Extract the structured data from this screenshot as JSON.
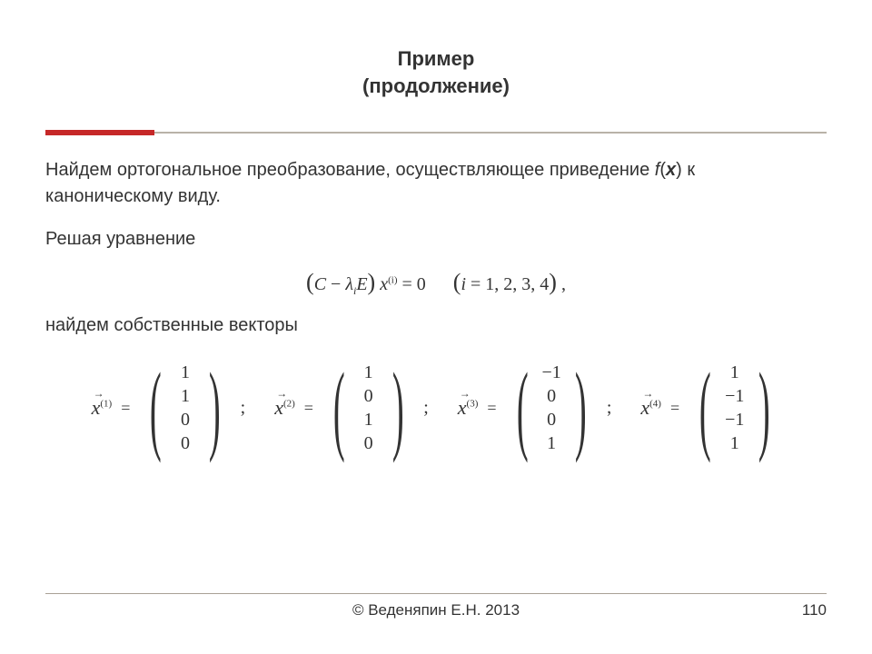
{
  "title": {
    "line1": "Пример",
    "line2": "(продолжение)"
  },
  "title_fontsize": "22px",
  "body_fontsize": "20px",
  "text": {
    "para1_a": "Найдем ортогональное преобразование, осуществляющее приведение ",
    "para1_b": "f",
    "para1_c": "(",
    "para1_d": "x",
    "para1_e": ") к каноническому виду.",
    "para2": "Решая уравнение",
    "para3": "найдем собственные векторы"
  },
  "equation": {
    "lp1": "(",
    "C": "C",
    "minus": " − ",
    "lambda": "λ",
    "i": "i",
    "E": "E",
    "rp1": ")",
    "sp": " ",
    "x": "x",
    "sup": "(i)",
    "eq": " = 0      ",
    "lp2": "(",
    "ivar": "i",
    "eqlist": " = 1, 2, 3, 4",
    "rp2": ")",
    "comma": " ,"
  },
  "vectors": [
    {
      "sup": "(1)",
      "col": [
        "1",
        "1",
        "0",
        "0"
      ],
      "semi": ";"
    },
    {
      "sup": "(2)",
      "col": [
        "1",
        "0",
        "1",
        "0"
      ],
      "semi": ";"
    },
    {
      "sup": "(3)",
      "col": [
        "−1",
        "0",
        "0",
        "1"
      ],
      "semi": ";"
    },
    {
      "sup": "(4)",
      "col": [
        "1",
        "−1",
        "−1",
        "1"
      ],
      "semi": ""
    }
  ],
  "vec_symbol": {
    "arrow": "→",
    "x": "x",
    "eq": "=",
    "lparen": "(",
    "rparen": ")"
  },
  "footer": {
    "copyright": "© Веденяпин Е.Н. 2013",
    "page": "110"
  },
  "colors": {
    "text": "#333333",
    "rule_gray": "#b9b2a8",
    "rule_red": "#c62828",
    "background": "#ffffff"
  }
}
